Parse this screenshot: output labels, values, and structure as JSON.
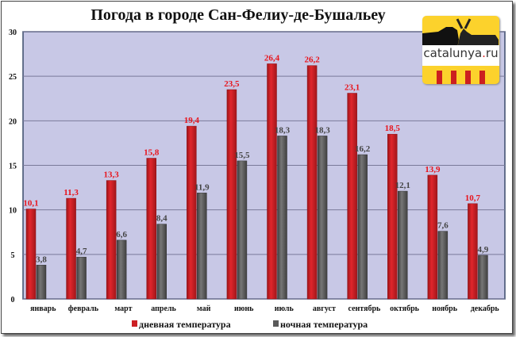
{
  "chart_data": {
    "type": "bar",
    "title": "Погода в городе Сан-Фелиу-де-Бушальеу",
    "categories": [
      "январь",
      "февраль",
      "март",
      "апрель",
      "май",
      "июнь",
      "июль",
      "август",
      "сентябрь",
      "октябрь",
      "ноябрь",
      "декабрь"
    ],
    "series": [
      {
        "name": "дневная температура",
        "color": "#cc1f24",
        "values": [
          10.1,
          11.3,
          13.3,
          15.8,
          19.4,
          23.5,
          26.4,
          26.2,
          23.1,
          18.5,
          13.9,
          10.7
        ],
        "labels": [
          "10,1",
          "11,3",
          "13,3",
          "15,8",
          "19,4",
          "23,5",
          "26,4",
          "26,2",
          "23,1",
          "18,5",
          "13,9",
          "10,7"
        ]
      },
      {
        "name": "ночная температура",
        "color": "#5a5a5a",
        "values": [
          3.8,
          4.7,
          6.6,
          8.4,
          11.9,
          15.5,
          18.3,
          18.3,
          16.2,
          12.1,
          7.6,
          4.9
        ],
        "labels": [
          "3,8",
          "4,7",
          "6,6",
          "8,4",
          "11,9",
          "15,5",
          "18,3",
          "18,3",
          "16,2",
          "12,1",
          "7,6",
          "4,9"
        ]
      }
    ],
    "ylim": [
      0,
      30
    ],
    "yticks": [
      0,
      5,
      10,
      15,
      20,
      25,
      30
    ],
    "grid": true,
    "legend": "bottom",
    "plot_background": "#c8c8e6"
  },
  "logo": {
    "text_main": "catalunya",
    "text_dot": ".",
    "text_tld": "ru"
  }
}
